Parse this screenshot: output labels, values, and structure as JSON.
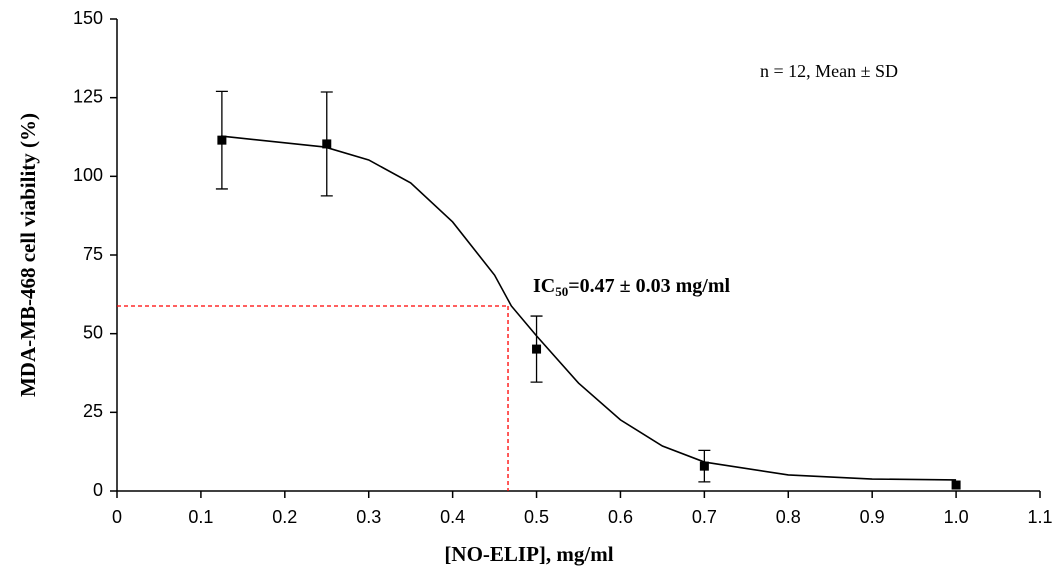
{
  "chart_data": {
    "type": "scatter",
    "x_label": "[NO-ELIP], mg/ml",
    "y_label": "MDA-MB-468 cell viability (%)",
    "xlim": [
      0,
      1.1
    ],
    "xticks": [
      0,
      0.1,
      0.2,
      0.3,
      0.4,
      0.5,
      0.6,
      0.7,
      0.8,
      0.9,
      {
        "value": 1,
        "label": "1.0"
      },
      1.1
    ],
    "ylim": [
      0,
      150
    ],
    "yticks": [
      0,
      25,
      50,
      75,
      100,
      125,
      150
    ],
    "points": {
      "color": "#000000",
      "x": [
        0.125,
        0.25,
        0.5,
        0.7,
        1.0
      ],
      "values": [
        111.5,
        110.3,
        45.1,
        7.9,
        1.9
      ],
      "errors": [
        15.5,
        16.5,
        10.5,
        5,
        null
      ]
    },
    "fit": {
      "color": "#000000",
      "x": [
        0.124,
        0.248,
        0.3,
        0.35,
        0.4,
        0.45,
        0.47,
        0.5,
        0.55,
        0.6,
        0.65,
        0.7,
        0.8,
        0.9,
        1.0
      ],
      "values": [
        112.8,
        109.3,
        105.2,
        97.9,
        85.5,
        68.6,
        58.8,
        49.3,
        34.3,
        22.6,
        14.3,
        9.2,
        5.1,
        3.8,
        3.5
      ]
    },
    "reference": {
      "x": 0.466,
      "y": 58.8,
      "color": "#ff0000"
    },
    "annotations": {
      "note": "n = 12, Mean ± SD",
      "ic_main": "IC",
      "ic_sub": "50",
      "ic_rest": "=0.47 ± 0.03 mg/ml"
    }
  }
}
